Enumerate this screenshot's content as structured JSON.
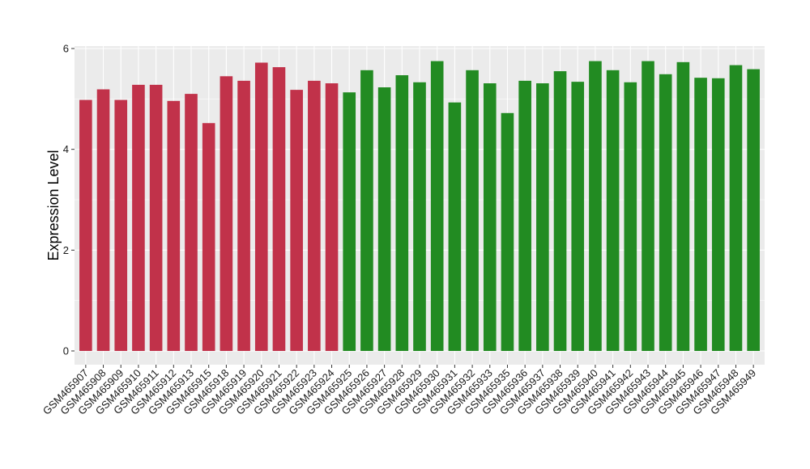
{
  "chart_data": {
    "type": "bar",
    "title": "",
    "xlabel": "",
    "ylabel": "Expression Level",
    "ylim": [
      0,
      6
    ],
    "yticks": [
      0,
      2,
      4,
      6
    ],
    "grid": true,
    "legend": "none",
    "panel_background": "#ebebeb",
    "grid_color": "#ffffff",
    "groups": [
      {
        "color": "#c1324a",
        "start": 0,
        "end": 15
      },
      {
        "color": "#228b22",
        "start": 16,
        "end": 39
      }
    ],
    "categories": [
      "GSM465907",
      "GSM465908",
      "GSM465909",
      "GSM465910",
      "GSM465911",
      "GSM465912",
      "GSM465913",
      "GSM465915",
      "GSM465918",
      "GSM465919",
      "GSM465920",
      "GSM465921",
      "GSM465922",
      "GSM465923",
      "GSM465924",
      "GSM465925",
      "GSM465926",
      "GSM465927",
      "GSM465928",
      "GSM465929",
      "GSM465930",
      "GSM465931",
      "GSM465932",
      "GSM465933",
      "GSM465935",
      "GSM465936",
      "GSM465937",
      "GSM465938",
      "GSM465939",
      "GSM465940",
      "GSM465941",
      "GSM465942",
      "GSM465943",
      "GSM465944",
      "GSM465945",
      "GSM465946",
      "GSM465947",
      "GSM465948",
      "GSM465949"
    ],
    "values": [
      4.98,
      5.19,
      4.98,
      5.28,
      5.28,
      4.96,
      5.1,
      4.52,
      5.45,
      5.36,
      5.72,
      5.63,
      5.18,
      5.36,
      5.31,
      5.13,
      5.57,
      5.23,
      5.47,
      5.33,
      5.75,
      4.93,
      5.57,
      5.31,
      4.72,
      5.36,
      5.31,
      5.55,
      5.34,
      5.75,
      5.57,
      5.33,
      5.75,
      5.49,
      5.73,
      5.42,
      5.41,
      5.67,
      5.59
    ],
    "colors": [
      "#c1324a",
      "#c1324a",
      "#c1324a",
      "#c1324a",
      "#c1324a",
      "#c1324a",
      "#c1324a",
      "#c1324a",
      "#c1324a",
      "#c1324a",
      "#c1324a",
      "#c1324a",
      "#c1324a",
      "#c1324a",
      "#c1324a",
      "#228b22",
      "#228b22",
      "#228b22",
      "#228b22",
      "#228b22",
      "#228b22",
      "#228b22",
      "#228b22",
      "#228b22",
      "#228b22",
      "#228b22",
      "#228b22",
      "#228b22",
      "#228b22",
      "#228b22",
      "#228b22",
      "#228b22",
      "#228b22",
      "#228b22",
      "#228b22",
      "#228b22",
      "#228b22",
      "#228b22",
      "#228b22"
    ]
  }
}
